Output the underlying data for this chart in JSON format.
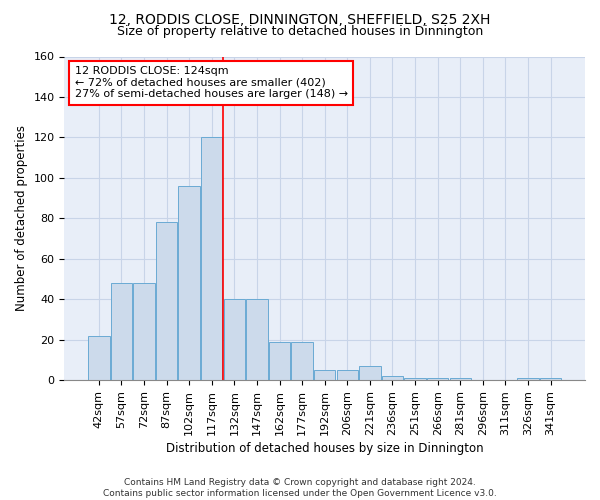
{
  "title1": "12, RODDIS CLOSE, DINNINGTON, SHEFFIELD, S25 2XH",
  "title2": "Size of property relative to detached houses in Dinnington",
  "xlabel": "Distribution of detached houses by size in Dinnington",
  "ylabel": "Number of detached properties",
  "categories": [
    "42sqm",
    "57sqm",
    "72sqm",
    "87sqm",
    "102sqm",
    "117sqm",
    "132sqm",
    "147sqm",
    "162sqm",
    "177sqm",
    "192sqm",
    "206sqm",
    "221sqm",
    "236sqm",
    "251sqm",
    "266sqm",
    "281sqm",
    "296sqm",
    "311sqm",
    "326sqm",
    "341sqm"
  ],
  "values": [
    22,
    48,
    48,
    78,
    96,
    120,
    40,
    40,
    19,
    19,
    5,
    5,
    7,
    2,
    1,
    1,
    1,
    0,
    0,
    1,
    1
  ],
  "bar_color": "#ccdaeb",
  "bar_edge_color": "#6aaad4",
  "vline_x": 5.5,
  "annotation_text": "12 RODDIS CLOSE: 124sqm\n← 72% of detached houses are smaller (402)\n27% of semi-detached houses are larger (148) →",
  "annotation_box_color": "white",
  "annotation_box_edge_color": "red",
  "vline_color": "red",
  "ylim": [
    0,
    160
  ],
  "yticks": [
    0,
    20,
    40,
    60,
    80,
    100,
    120,
    140,
    160
  ],
  "grid_color": "#c8d4e8",
  "background_color": "#e8eef8",
  "footer_text": "Contains HM Land Registry data © Crown copyright and database right 2024.\nContains public sector information licensed under the Open Government Licence v3.0.",
  "title1_fontsize": 10,
  "title2_fontsize": 9,
  "xlabel_fontsize": 8.5,
  "ylabel_fontsize": 8.5,
  "tick_fontsize": 8,
  "annot_fontsize": 8
}
